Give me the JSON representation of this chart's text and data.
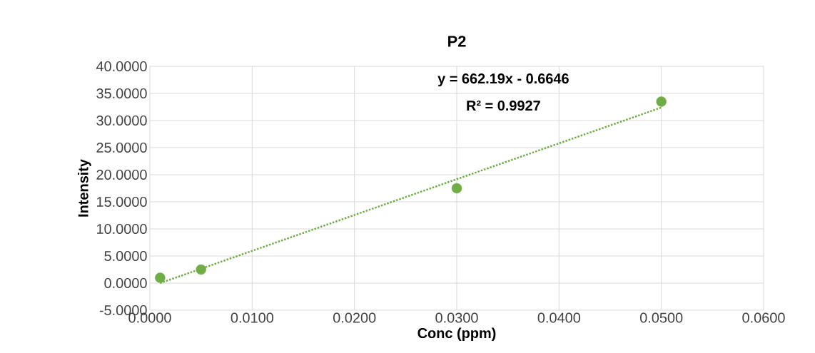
{
  "chart_data": {
    "type": "scatter",
    "title": "P2",
    "xlabel": "Conc (ppm)",
    "ylabel": "Intensity",
    "annotations": [
      "y = 662.19x - 0.6646",
      "R² = 0.9927"
    ],
    "series": [
      {
        "color": "#70ad47",
        "marker": "circle",
        "x": [
          0.001,
          0.005,
          0.03,
          0.05
        ],
        "values": [
          1.0,
          2.5,
          17.5,
          33.5
        ]
      },
      {
        "type": "line",
        "color": "#70ad47",
        "line_style": "dotted",
        "marker": "none",
        "x": [
          0.001,
          0.05
        ],
        "values": [
          0.0,
          32.4
        ]
      }
    ],
    "grid": true,
    "xlim": [
      0,
      0.06
    ],
    "ylim": [
      -5,
      40
    ],
    "xticks": [
      {
        "value": 0,
        "label": "0.0000"
      },
      {
        "value": 0.01,
        "label": "0.0100"
      },
      {
        "value": 0.02,
        "label": "0.0200"
      },
      {
        "value": 0.03,
        "label": "0.0300"
      },
      {
        "value": 0.04,
        "label": "0.0400"
      },
      {
        "value": 0.05,
        "label": "0.0500"
      },
      {
        "value": 0.06,
        "label": "0.0600"
      }
    ],
    "yticks": [
      {
        "value": -5,
        "label": "-5.0000"
      },
      {
        "value": 0,
        "label": "0.0000"
      },
      {
        "value": 5,
        "label": "5.0000"
      },
      {
        "value": 10,
        "label": "10.0000"
      },
      {
        "value": 15,
        "label": "15.0000"
      },
      {
        "value": 20,
        "label": "20.0000"
      },
      {
        "value": 25,
        "label": "25.0000"
      },
      {
        "value": 30,
        "label": "30.0000"
      },
      {
        "value": 35,
        "label": "35.0000"
      },
      {
        "value": 40,
        "label": "40.0000"
      }
    ]
  }
}
